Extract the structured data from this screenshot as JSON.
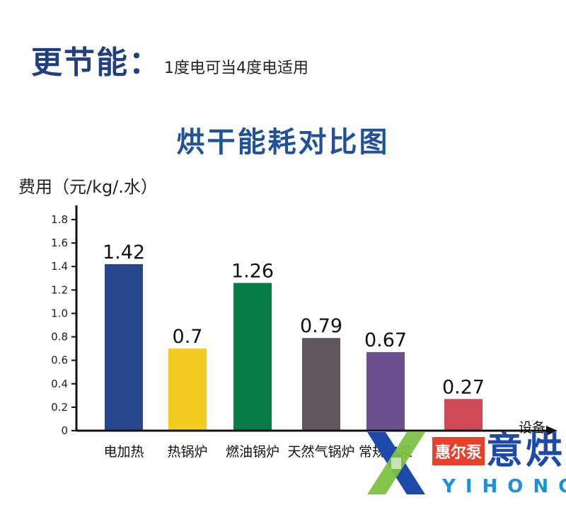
{
  "headline": {
    "title": "更节能：",
    "subtitle": "1度电可当4度电适用"
  },
  "chart_data": {
    "type": "bar",
    "title": "烘干能耗对比图",
    "ylabel": "费用（元/kg/.水）",
    "xlabel": "设备",
    "ylim": [
      0,
      1.8
    ],
    "yticks": [
      "0",
      "0.2",
      "0.4",
      "0.6",
      "0.8",
      "1.0",
      "1.2",
      "1.4",
      "1.6",
      "1.8"
    ],
    "grid": false,
    "categories": [
      "电加热",
      "热锅炉",
      "燃油锅炉",
      "天然气锅炉",
      "常规热泵",
      "惠尔泵"
    ],
    "values": [
      1.42,
      0.7,
      1.26,
      0.79,
      0.67,
      0.27
    ],
    "data_labels": [
      "1.42",
      "0.7",
      "1.26",
      "0.79",
      "0.67",
      "0.27"
    ],
    "colors": [
      "#27478c",
      "#f2cc1f",
      "#077b48",
      "#5f565f",
      "#6c4f8e",
      "#cf4a55"
    ]
  },
  "logo": {
    "badge": "惠尔泵",
    "name": "意烘",
    "english": "YIHONG",
    "colors": {
      "green": "#7cc243",
      "blue": "#1d4aa8",
      "red": "#e6412c"
    }
  }
}
